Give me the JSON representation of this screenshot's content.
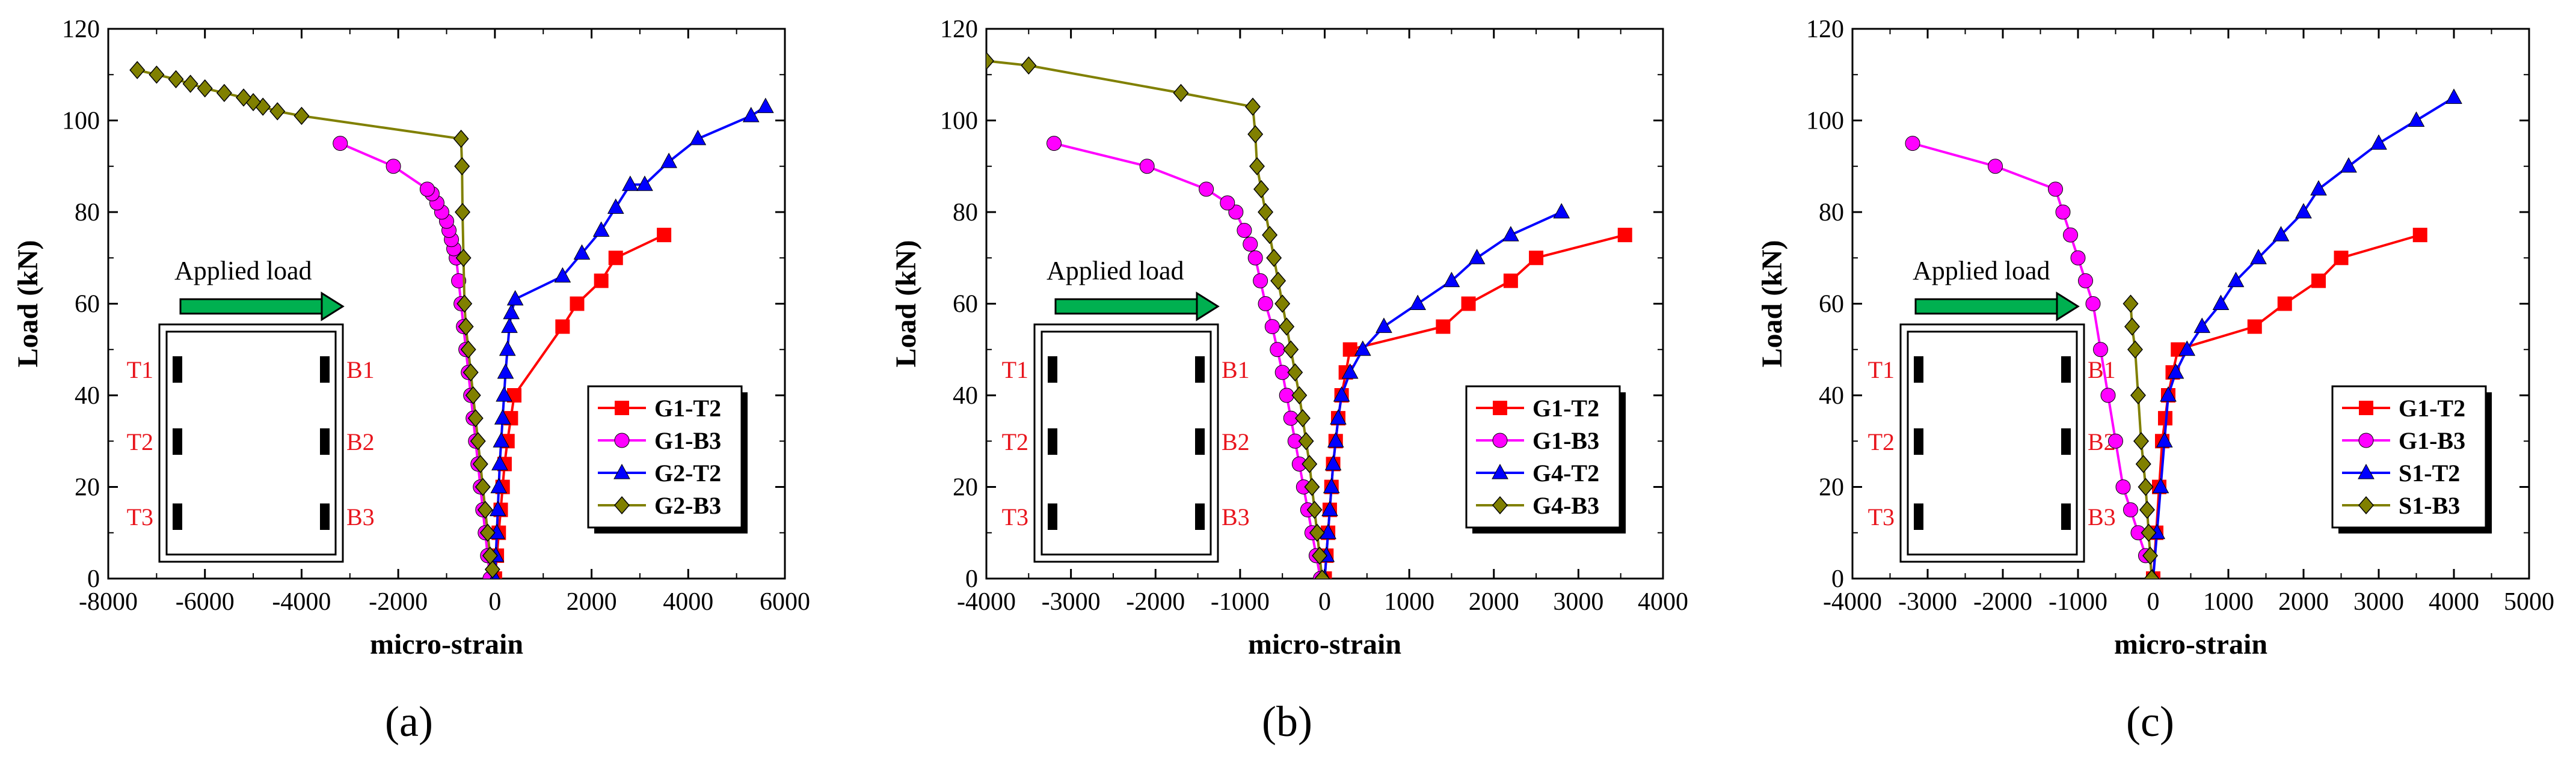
{
  "colors": {
    "T2": "#ff0000",
    "B3a": "#ff00ff",
    "T2b": "#0000ff",
    "B3b": "#808000",
    "arrow": "#00b050",
    "gauge_label": "#e8141c"
  },
  "inset": {
    "title": "Applied load",
    "labels_left": [
      "T1",
      "T2",
      "T3"
    ],
    "labels_right": [
      "B1",
      "B2",
      "B3"
    ]
  },
  "chart_data": [
    {
      "type": "line",
      "panel_label": "(a)",
      "xlabel": "micro-strain",
      "ylabel": "Load (kN)",
      "xlim": [
        -8000,
        6000
      ],
      "xticks": [
        -8000,
        -6000,
        -4000,
        -2000,
        0,
        2000,
        4000,
        6000
      ],
      "ylim": [
        0,
        120
      ],
      "yticks": [
        0,
        20,
        40,
        60,
        80,
        100,
        120
      ],
      "legend_position": "lower-right",
      "series": [
        {
          "name": "G1-T2",
          "marker": "square",
          "color_key": "T2",
          "x": [
            0,
            40,
            80,
            120,
            160,
            200,
            260,
            330,
            400,
            1400,
            1700,
            2200,
            2500,
            3500
          ],
          "y": [
            0,
            5,
            10,
            15,
            20,
            25,
            30,
            35,
            40,
            55,
            60,
            65,
            70,
            75
          ]
        },
        {
          "name": "G1-B3",
          "marker": "circle",
          "color_key": "B3a",
          "x": [
            -100,
            -150,
            -200,
            -250,
            -300,
            -350,
            -400,
            -450,
            -500,
            -550,
            -600,
            -650,
            -700,
            -750,
            -800,
            -850,
            -900,
            -950,
            -1000,
            -1100,
            -1200,
            -1300,
            -1400,
            -2100,
            -3200
          ],
          "y": [
            0,
            5,
            10,
            15,
            20,
            25,
            30,
            35,
            40,
            45,
            50,
            55,
            60,
            65,
            70,
            72,
            74,
            76,
            78,
            80,
            82,
            84,
            85,
            90,
            95
          ]
        },
        {
          "name": "G2-T2",
          "marker": "triangle",
          "color_key": "T2b",
          "x": [
            0,
            20,
            40,
            60,
            80,
            100,
            130,
            160,
            190,
            220,
            260,
            300,
            340,
            420,
            1400,
            1800,
            2200,
            2500,
            2800,
            3100,
            3600,
            4200,
            5300,
            5600
          ],
          "y": [
            0,
            5,
            10,
            15,
            20,
            25,
            30,
            35,
            40,
            45,
            50,
            55,
            58,
            61,
            66,
            71,
            76,
            81,
            86,
            86,
            91,
            96,
            101,
            103
          ]
        },
        {
          "name": "G2-B3",
          "marker": "diamond",
          "color_key": "B3b",
          "x": [
            -50,
            -100,
            -150,
            -200,
            -250,
            -300,
            -350,
            -400,
            -450,
            -500,
            -550,
            -600,
            -630,
            -650,
            -670,
            -680,
            -700,
            -4000,
            -4500,
            -4800,
            -5000,
            -5200,
            -5600,
            -6000,
            -6300,
            -6600,
            -7000,
            -7400
          ],
          "y": [
            2,
            5,
            10,
            15,
            20,
            25,
            30,
            35,
            40,
            45,
            50,
            55,
            60,
            70,
            80,
            90,
            96,
            101,
            102,
            103,
            104,
            105,
            106,
            107,
            108,
            109,
            110,
            111
          ]
        }
      ]
    },
    {
      "type": "line",
      "panel_label": "(b)",
      "xlabel": "micro-strain",
      "ylabel": "Load (kN)",
      "xlim": [
        -4000,
        4000
      ],
      "xticks": [
        -4000,
        -3000,
        -2000,
        -1000,
        0,
        1000,
        2000,
        3000,
        4000
      ],
      "ylim": [
        0,
        120
      ],
      "yticks": [
        0,
        20,
        40,
        60,
        80,
        100,
        120
      ],
      "legend_position": "lower-right",
      "series": [
        {
          "name": "G1-T2",
          "marker": "square",
          "color_key": "T2",
          "x": [
            0,
            20,
            40,
            60,
            80,
            100,
            130,
            160,
            200,
            250,
            300,
            1400,
            1700,
            2200,
            2500,
            3550
          ],
          "y": [
            0,
            5,
            10,
            15,
            20,
            25,
            30,
            35,
            40,
            45,
            50,
            55,
            60,
            65,
            70,
            75
          ]
        },
        {
          "name": "G1-B3",
          "marker": "circle",
          "color_key": "B3a",
          "x": [
            -50,
            -100,
            -150,
            -200,
            -250,
            -300,
            -350,
            -400,
            -450,
            -500,
            -560,
            -620,
            -700,
            -760,
            -820,
            -880,
            -950,
            -1050,
            -1150,
            -1400,
            -2100,
            -3200
          ],
          "y": [
            0,
            5,
            10,
            15,
            20,
            25,
            30,
            35,
            40,
            45,
            50,
            55,
            60,
            65,
            70,
            73,
            76,
            80,
            82,
            85,
            90,
            95
          ]
        },
        {
          "name": "G4-T2",
          "marker": "triangle",
          "color_key": "T2b",
          "x": [
            0,
            20,
            40,
            60,
            80,
            100,
            130,
            160,
            200,
            300,
            450,
            700,
            1100,
            1500,
            1800,
            2200,
            2800
          ],
          "y": [
            0,
            5,
            10,
            15,
            20,
            25,
            30,
            35,
            40,
            45,
            50,
            55,
            60,
            65,
            70,
            75,
            80
          ]
        },
        {
          "name": "G4-B3",
          "marker": "diamond",
          "color_key": "B3b",
          "x": [
            -30,
            -60,
            -90,
            -120,
            -150,
            -180,
            -220,
            -260,
            -300,
            -350,
            -400,
            -450,
            -500,
            -550,
            -600,
            -650,
            -700,
            -750,
            -800,
            -820,
            -850,
            -1700,
            -3500,
            -4000
          ],
          "y": [
            0,
            5,
            10,
            15,
            20,
            25,
            30,
            35,
            40,
            45,
            50,
            55,
            60,
            65,
            70,
            75,
            80,
            85,
            90,
            97,
            103,
            106,
            112,
            113
          ]
        }
      ]
    },
    {
      "type": "line",
      "panel_label": "(c)",
      "xlabel": "micro-strain",
      "ylabel": "Load (kN)",
      "xlim": [
        -4000,
        5000
      ],
      "xticks": [
        -4000,
        -3000,
        -2000,
        -1000,
        0,
        1000,
        2000,
        3000,
        4000,
        5000
      ],
      "ylim": [
        0,
        120
      ],
      "yticks": [
        0,
        20,
        40,
        60,
        80,
        100,
        120
      ],
      "legend_position": "lower-right",
      "series": [
        {
          "name": "G1-T2",
          "marker": "square",
          "color_key": "T2",
          "x": [
            0,
            40,
            80,
            120,
            160,
            200,
            260,
            330,
            1350,
            1750,
            2200,
            2500,
            3550
          ],
          "y": [
            0,
            10,
            20,
            30,
            35,
            40,
            45,
            50,
            55,
            60,
            65,
            70,
            75
          ]
        },
        {
          "name": "G1-B3",
          "marker": "circle",
          "color_key": "B3a",
          "x": [
            -100,
            -200,
            -300,
            -400,
            -500,
            -600,
            -700,
            -800,
            -900,
            -1000,
            -1100,
            -1200,
            -1300,
            -2100,
            -3200
          ],
          "y": [
            5,
            10,
            15,
            20,
            30,
            40,
            50,
            60,
            65,
            70,
            75,
            80,
            85,
            90,
            95
          ]
        },
        {
          "name": "S1-T2",
          "marker": "triangle",
          "color_key": "T2b",
          "x": [
            0,
            50,
            100,
            150,
            200,
            300,
            450,
            650,
            900,
            1100,
            1400,
            1700,
            2000,
            2200,
            2600,
            3000,
            3500,
            4000
          ],
          "y": [
            0,
            10,
            20,
            30,
            40,
            45,
            50,
            55,
            60,
            65,
            70,
            75,
            80,
            85,
            90,
            95,
            100,
            105
          ]
        },
        {
          "name": "S1-B3",
          "marker": "diamond",
          "color_key": "B3b",
          "x": [
            -20,
            -40,
            -60,
            -80,
            -100,
            -130,
            -160,
            -200,
            -240,
            -280,
            -300
          ],
          "y": [
            0,
            5,
            10,
            15,
            20,
            25,
            30,
            40,
            50,
            55,
            60
          ]
        }
      ]
    }
  ]
}
